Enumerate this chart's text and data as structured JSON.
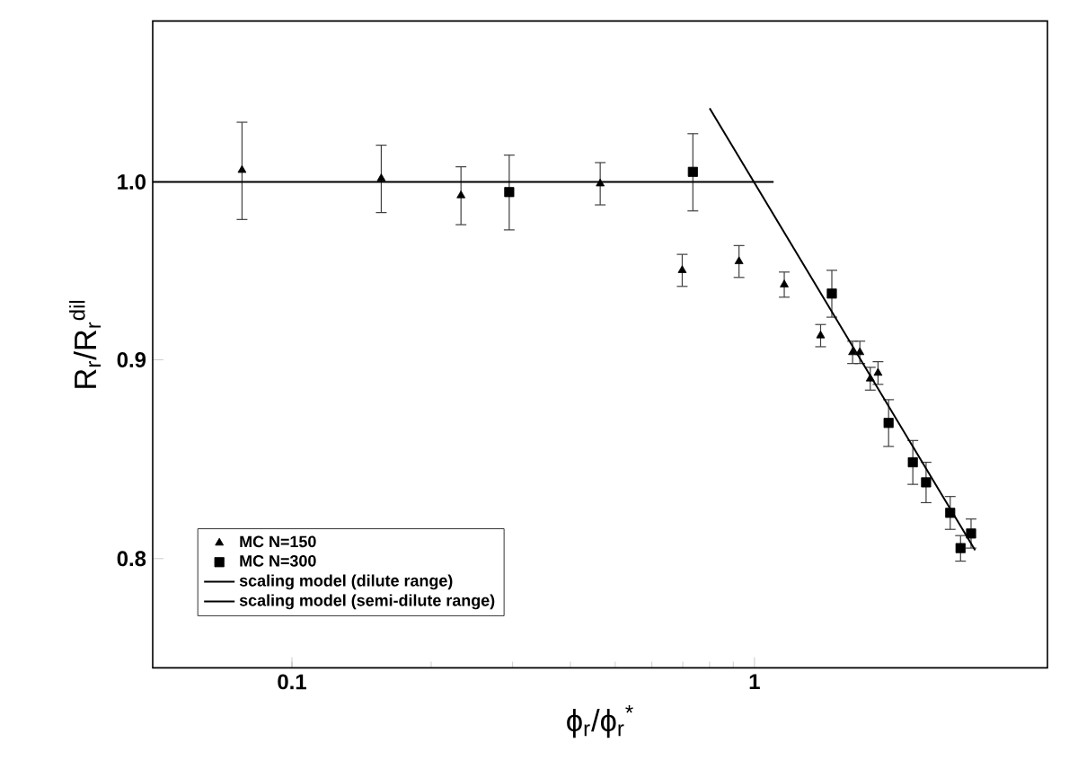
{
  "chart_data": {
    "type": "scatter",
    "xlabel": "ϕ$_{r}$/ϕ$_{r}$$^{*}$",
    "ylabel": "R$_{r}$/R$_{r}$$^{dil}$",
    "log": "xy",
    "xlim": [
      0.05,
      4.3
    ],
    "ylim": [
      0.75,
      1.1
    ],
    "xticks": [
      0.1,
      1
    ],
    "yticks": [
      0.8,
      0.9,
      {
        "value": 1,
        "label": "1.0"
      }
    ],
    "legend": "bottom left",
    "series": [
      {
        "name": "MC N=150",
        "marker": "triangle",
        "color": "#000000",
        "x": [
          0.078,
          0.156,
          0.232,
          0.464,
          0.698,
          0.926,
          1.16,
          1.39,
          1.63,
          1.69,
          1.78,
          1.85
        ],
        "values": [
          1.007,
          1.002,
          0.992,
          0.999,
          0.949,
          0.954,
          0.941,
          0.913,
          0.904,
          0.904,
          0.89,
          0.893
        ],
        "errors": [
          0.029,
          0.02,
          0.017,
          0.0125,
          0.009,
          0.009,
          0.007,
          0.006,
          0.006,
          0.006,
          0.006,
          0.006
        ]
      },
      {
        "name": "MC N=300",
        "marker": "square",
        "color": "#000000",
        "x": [
          0.295,
          0.736,
          1.47,
          1.95,
          2.2,
          2.35,
          2.65,
          2.79,
          2.94
        ],
        "values": [
          0.994,
          1.006,
          0.936,
          0.867,
          0.847,
          0.837,
          0.822,
          0.805,
          0.812
        ],
        "errors": [
          0.022,
          0.023,
          0.013,
          0.012,
          0.011,
          0.01,
          0.008,
          0.006,
          0.007
        ]
      },
      {
        "name": "scaling model (dilute range)",
        "type": "line",
        "marker": "none",
        "line_style": "solid",
        "color": "#000000",
        "x": [
          0.05,
          1.1
        ],
        "values": [
          1,
          1
        ]
      },
      {
        "name": "scaling model (semi-dilute range)",
        "type": "line",
        "marker": "none",
        "line_style": "solid",
        "color": "#000000",
        "x": [
          0.8,
          3.0
        ],
        "values": [
          1.0446,
          0.804
        ]
      }
    ]
  }
}
